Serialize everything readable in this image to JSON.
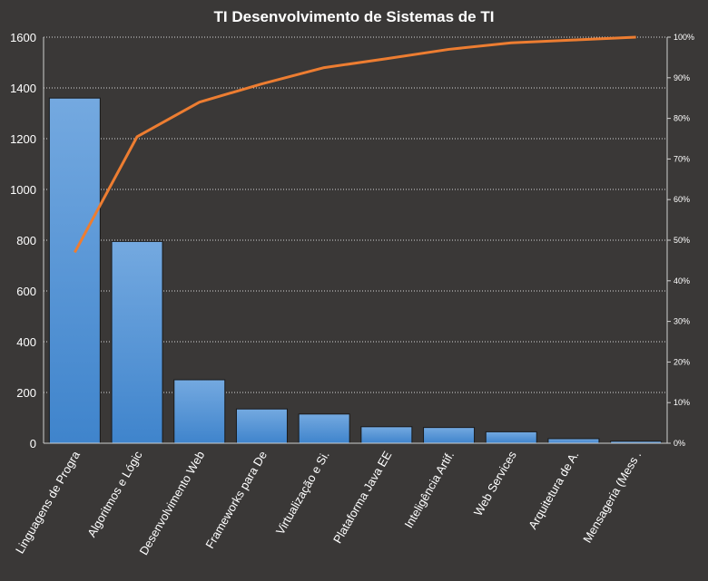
{
  "chart_data": {
    "type": "bar",
    "title": "TI Desenvolvimento  de Sistemas de TI",
    "categories": [
      "Linguagens de Progra",
      "Algoritmos e Lógic",
      "Desenvolvimento Web",
      "Frameworks para De",
      "Virtualização e Si.",
      "Plataforma Java EE",
      "Inteligência Artif.",
      "Web Services",
      "Arquitetura de A.",
      "Mensageria (Mess ."
    ],
    "series": [
      {
        "type": "bar",
        "values": [
          1360,
          795,
          250,
          135,
          115,
          65,
          62,
          45,
          18,
          8
        ]
      },
      {
        "type": "line",
        "axis": "secondary",
        "values": [
          0.47,
          0.755,
          0.84,
          0.885,
          0.925,
          0.947,
          0.97,
          0.986,
          0.993,
          1.0
        ]
      }
    ],
    "ylim": [
      0,
      1600
    ],
    "yticks": [
      "0",
      "200",
      "400",
      "600",
      "800",
      "1000",
      "1200",
      "1400",
      "1600"
    ],
    "y2lim": [
      0,
      1
    ],
    "y2ticks": [
      "0%",
      "10%",
      "20%",
      "30%",
      "40%",
      "50%",
      "60%",
      "70%",
      "80%",
      "90%",
      "100%"
    ],
    "grid": true,
    "colors": {
      "background": "#3a3837",
      "bar_top": "#6fa8e6",
      "bar_bottom": "#3b82cc",
      "line": "#ed7d31",
      "text": "#ffffff"
    }
  }
}
